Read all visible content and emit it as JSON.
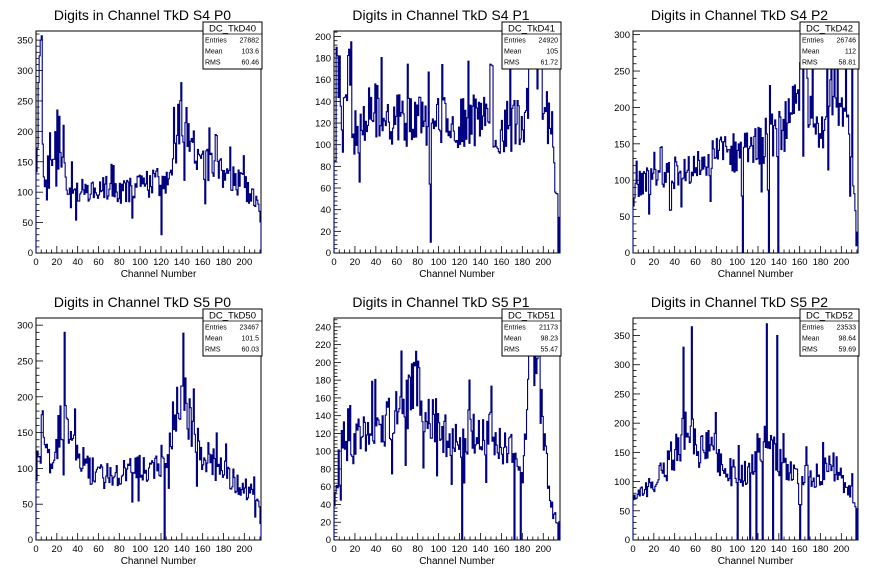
{
  "chart_data": [
    {
      "type": "histogram",
      "title": "Digits in Channel TkD S4 P0",
      "xlabel": "Channel Number",
      "ylabel": "",
      "xlim": [
        0,
        216
      ],
      "ylim": [
        0,
        365
      ],
      "xticks": [
        0,
        20,
        40,
        60,
        80,
        100,
        120,
        140,
        160,
        180,
        200
      ],
      "yticks": [
        50,
        100,
        150,
        200,
        250,
        300,
        350
      ],
      "stats": {
        "name": "DC_TkD40",
        "rows": [
          [
            "Entries",
            "27882"
          ],
          [
            "Mean",
            "103.6"
          ],
          [
            "RMS",
            "60.46"
          ]
        ]
      },
      "seed": 11,
      "profile": [
        [
          0,
          95
        ],
        [
          4,
          340
        ],
        [
          8,
          90
        ],
        [
          12,
          200
        ],
        [
          16,
          150
        ],
        [
          20,
          130
        ],
        [
          25,
          180
        ],
        [
          30,
          90
        ],
        [
          40,
          100
        ],
        [
          60,
          110
        ],
        [
          80,
          95
        ],
        [
          100,
          110
        ],
        [
          118,
          120
        ],
        [
          122,
          110
        ],
        [
          130,
          140
        ],
        [
          136,
          200
        ],
        [
          140,
          240
        ],
        [
          146,
          185
        ],
        [
          160,
          150
        ],
        [
          180,
          125
        ],
        [
          200,
          110
        ],
        [
          212,
          80
        ],
        [
          216,
          60
        ]
      ],
      "spikes": [
        [
          4,
          350
        ],
        [
          20,
          235
        ],
        [
          26,
          210
        ],
        [
          34,
          150
        ],
        [
          120,
          30
        ],
        [
          139,
          280
        ]
      ]
    },
    {
      "type": "histogram",
      "title": "Digits in Channel TkD S4 P1",
      "xlabel": "Channel Number",
      "ylabel": "",
      "xlim": [
        0,
        216
      ],
      "ylim": [
        0,
        205
      ],
      "xticks": [
        0,
        20,
        40,
        60,
        80,
        100,
        120,
        140,
        160,
        180,
        200
      ],
      "yticks": [
        20,
        40,
        60,
        80,
        100,
        120,
        140,
        160,
        180,
        200
      ],
      "stats": {
        "name": "DC_TkD41",
        "rows": [
          [
            "Entries",
            "24920"
          ],
          [
            "Mean",
            "105"
          ],
          [
            "RMS",
            "61.72"
          ]
        ]
      },
      "seed": 23,
      "profile": [
        [
          0,
          60
        ],
        [
          4,
          180
        ],
        [
          8,
          110
        ],
        [
          14,
          160
        ],
        [
          20,
          110
        ],
        [
          30,
          130
        ],
        [
          40,
          130
        ],
        [
          50,
          120
        ],
        [
          60,
          125
        ],
        [
          70,
          120
        ],
        [
          80,
          125
        ],
        [
          90,
          115
        ],
        [
          100,
          120
        ],
        [
          120,
          120
        ],
        [
          140,
          125
        ],
        [
          160,
          115
        ],
        [
          175,
          120
        ],
        [
          185,
          130
        ],
        [
          190,
          185
        ],
        [
          195,
          170
        ],
        [
          205,
          120
        ],
        [
          212,
          60
        ],
        [
          216,
          60
        ]
      ],
      "spikes": [
        [
          2,
          190
        ],
        [
          16,
          195
        ],
        [
          92,
          10
        ],
        [
          188,
          200
        ],
        [
          192,
          195
        ],
        [
          214,
          0
        ]
      ]
    },
    {
      "type": "histogram",
      "title": "Digits in Channel TkD S4 P2",
      "xlabel": "Channel Number",
      "ylabel": "",
      "xlim": [
        0,
        216
      ],
      "ylim": [
        0,
        305
      ],
      "xticks": [
        0,
        20,
        40,
        60,
        80,
        100,
        120,
        140,
        160,
        180,
        200
      ],
      "yticks": [
        50,
        100,
        150,
        200,
        250,
        300
      ],
      "stats": {
        "name": "DC_TkD42",
        "rows": [
          [
            "Entries",
            "26746"
          ],
          [
            "Mean",
            "112"
          ],
          [
            "RMS",
            "58.81"
          ]
        ]
      },
      "seed": 37,
      "profile": [
        [
          0,
          80
        ],
        [
          10,
          100
        ],
        [
          20,
          95
        ],
        [
          40,
          110
        ],
        [
          60,
          125
        ],
        [
          80,
          130
        ],
        [
          100,
          140
        ],
        [
          120,
          150
        ],
        [
          140,
          165
        ],
        [
          150,
          180
        ],
        [
          160,
          230
        ],
        [
          166,
          250
        ],
        [
          170,
          180
        ],
        [
          180,
          170
        ],
        [
          190,
          220
        ],
        [
          200,
          200
        ],
        [
          208,
          150
        ],
        [
          216,
          20
        ]
      ],
      "spikes": [
        [
          105,
          0
        ],
        [
          130,
          0
        ],
        [
          139,
          0
        ],
        [
          172,
          270
        ],
        [
          196,
          295
        ],
        [
          204,
          295
        ],
        [
          210,
          290
        ],
        [
          214,
          10
        ]
      ]
    },
    {
      "type": "histogram",
      "title": "Digits in Channel TkD S5 P0",
      "xlabel": "Channel Number",
      "ylabel": "",
      "xlim": [
        0,
        216
      ],
      "ylim": [
        0,
        310
      ],
      "xticks": [
        0,
        20,
        40,
        60,
        80,
        100,
        120,
        140,
        160,
        180,
        200
      ],
      "yticks": [
        50,
        100,
        150,
        200,
        250,
        300
      ],
      "stats": {
        "name": "DC_TkD50",
        "rows": [
          [
            "Entries",
            "23467"
          ],
          [
            "Mean",
            "101.5"
          ],
          [
            "RMS",
            "60.03"
          ]
        ]
      },
      "seed": 41,
      "profile": [
        [
          0,
          100
        ],
        [
          8,
          130
        ],
        [
          16,
          110
        ],
        [
          22,
          150
        ],
        [
          28,
          170
        ],
        [
          32,
          140
        ],
        [
          40,
          120
        ],
        [
          50,
          100
        ],
        [
          60,
          90
        ],
        [
          80,
          90
        ],
        [
          100,
          100
        ],
        [
          120,
          110
        ],
        [
          126,
          120
        ],
        [
          130,
          150
        ],
        [
          136,
          190
        ],
        [
          142,
          200
        ],
        [
          150,
          150
        ],
        [
          160,
          120
        ],
        [
          180,
          95
        ],
        [
          200,
          75
        ],
        [
          210,
          60
        ],
        [
          216,
          40
        ]
      ],
      "spikes": [
        [
          27,
          290
        ],
        [
          123,
          0
        ],
        [
          140,
          215
        ]
      ]
    },
    {
      "type": "histogram",
      "title": "Digits in Channel TkD S5 P1",
      "xlabel": "Channel Number",
      "ylabel": "",
      "xlim": [
        0,
        216
      ],
      "ylim": [
        0,
        250
      ],
      "xticks": [
        0,
        20,
        40,
        60,
        80,
        100,
        120,
        140,
        160,
        180,
        200
      ],
      "yticks": [
        20,
        40,
        60,
        80,
        100,
        120,
        140,
        160,
        180,
        200,
        220,
        240
      ],
      "stats": {
        "name": "DC_TkD51",
        "rows": [
          [
            "Entries",
            "21173"
          ],
          [
            "Mean",
            "98.23"
          ],
          [
            "RMS",
            "55.47"
          ]
        ]
      },
      "seed": 53,
      "profile": [
        [
          0,
          40
        ],
        [
          6,
          80
        ],
        [
          12,
          100
        ],
        [
          20,
          110
        ],
        [
          30,
          120
        ],
        [
          40,
          125
        ],
        [
          50,
          130
        ],
        [
          60,
          140
        ],
        [
          70,
          155
        ],
        [
          78,
          180
        ],
        [
          84,
          150
        ],
        [
          90,
          140
        ],
        [
          100,
          130
        ],
        [
          110,
          115
        ],
        [
          120,
          110
        ],
        [
          130,
          125
        ],
        [
          140,
          115
        ],
        [
          150,
          120
        ],
        [
          160,
          110
        ],
        [
          170,
          100
        ],
        [
          180,
          70
        ],
        [
          188,
          200
        ],
        [
          194,
          220
        ],
        [
          200,
          120
        ],
        [
          208,
          30
        ],
        [
          216,
          20
        ]
      ],
      "spikes": [
        [
          76,
          200
        ],
        [
          122,
          0
        ],
        [
          172,
          0
        ],
        [
          178,
          0
        ],
        [
          190,
          240
        ],
        [
          196,
          240
        ],
        [
          214,
          0
        ]
      ]
    },
    {
      "type": "histogram",
      "title": "Digits in Channel TkD S5 P2",
      "xlabel": "Channel Number",
      "ylabel": "",
      "xlim": [
        0,
        216
      ],
      "ylim": [
        0,
        380
      ],
      "xticks": [
        0,
        20,
        40,
        60,
        80,
        100,
        120,
        140,
        160,
        180,
        200
      ],
      "yticks": [
        50,
        100,
        150,
        200,
        250,
        300,
        350
      ],
      "stats": {
        "name": "DC_TkD52",
        "rows": [
          [
            "Entries",
            "23533"
          ],
          [
            "Mean",
            "98.64"
          ],
          [
            "RMS",
            "59.69"
          ]
        ]
      },
      "seed": 67,
      "profile": [
        [
          0,
          70
        ],
        [
          10,
          90
        ],
        [
          20,
          100
        ],
        [
          30,
          120
        ],
        [
          40,
          150
        ],
        [
          50,
          180
        ],
        [
          56,
          200
        ],
        [
          62,
          150
        ],
        [
          70,
          160
        ],
        [
          80,
          150
        ],
        [
          90,
          120
        ],
        [
          100,
          110
        ],
        [
          110,
          120
        ],
        [
          120,
          160
        ],
        [
          130,
          170
        ],
        [
          140,
          130
        ],
        [
          150,
          120
        ],
        [
          160,
          110
        ],
        [
          170,
          110
        ],
        [
          180,
          110
        ],
        [
          190,
          130
        ],
        [
          200,
          110
        ],
        [
          210,
          80
        ],
        [
          216,
          60
        ]
      ],
      "spikes": [
        [
          48,
          330
        ],
        [
          56,
          365
        ],
        [
          100,
          0
        ],
        [
          112,
          0
        ],
        [
          118,
          0
        ],
        [
          124,
          0
        ],
        [
          128,
          370
        ],
        [
          134,
          0
        ],
        [
          138,
          350
        ],
        [
          142,
          0
        ],
        [
          160,
          0
        ],
        [
          168,
          0
        ],
        [
          214,
          0
        ]
      ]
    }
  ]
}
